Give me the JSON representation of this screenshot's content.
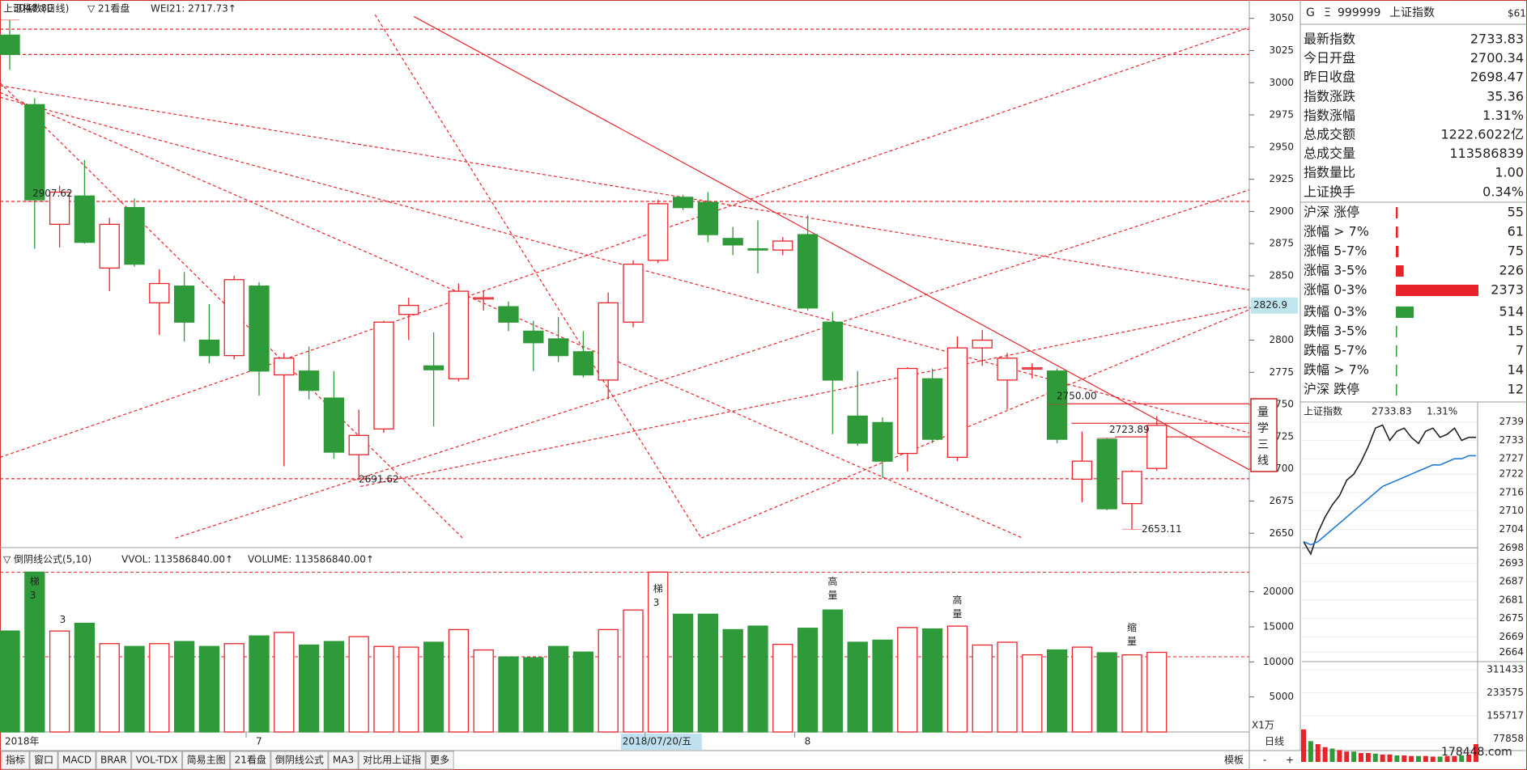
{
  "chart_data": [
    {
      "type": "candlestick",
      "title": "上证指数(日线)",
      "indicator": "▽ 21看盘",
      "indicator_value": "WEI21: 2717.73↑",
      "categories": [
        "2018年",
        null,
        null,
        null,
        null,
        null,
        null,
        null,
        null,
        null,
        "7",
        null,
        null,
        null,
        null,
        null,
        null,
        null,
        null,
        null,
        null,
        null,
        null,
        null,
        null,
        null,
        "2018/07/20/五",
        null,
        null,
        null,
        null,
        null,
        "8",
        null,
        null,
        null,
        null,
        null,
        null,
        null,
        null,
        null,
        null,
        null,
        null,
        null,
        null
      ],
      "open": [
        3037,
        2983,
        2890,
        2912,
        2856,
        2903,
        2829,
        2842,
        2800,
        2788,
        2842,
        2773,
        2776,
        2755,
        2711,
        2731,
        2820,
        2780,
        2770,
        2832,
        2826,
        2807,
        2801,
        2791,
        2769,
        2814,
        2862,
        2911,
        2907,
        2879,
        2871,
        2870,
        2882,
        2814,
        2741,
        2736,
        2712,
        2770,
        2709,
        2794,
        2769,
        2778,
        2776,
        2692,
        2723,
        2673,
        2700.34
      ],
      "high": [
        3048.8,
        2988,
        2920,
        2940,
        2895,
        2910,
        2855,
        2853,
        2828,
        2850,
        2845,
        2790,
        2795,
        2776,
        2746,
        2815,
        2833,
        2806,
        2844,
        2838,
        2830,
        2815,
        2818,
        2807,
        2837,
        2862,
        2909,
        2913,
        2915,
        2888,
        2893,
        2880,
        2897,
        2822,
        2776,
        2740,
        2779,
        2778,
        2803,
        2808,
        2790,
        2782,
        2778,
        2729,
        2724,
        2699,
        2741
      ],
      "low": [
        3010,
        2871,
        2872,
        2875,
        2838,
        2857,
        2804,
        2799,
        2782,
        2785,
        2757,
        2702,
        2754,
        2708,
        2691.62,
        2728,
        2800,
        2733,
        2768,
        2823,
        2807,
        2776,
        2783,
        2771,
        2754,
        2810,
        2860,
        2901,
        2876,
        2866,
        2852,
        2866,
        2823,
        2727,
        2718,
        2693,
        2698,
        2720,
        2706,
        2780,
        2746,
        2770,
        2720,
        2674,
        2668,
        2653.11,
        2698.47
      ],
      "close": [
        3022,
        2909,
        2915,
        2876,
        2890,
        2859,
        2844,
        2814,
        2788,
        2847,
        2776,
        2786,
        2761,
        2713,
        2726,
        2814,
        2827,
        2777,
        2838,
        2833,
        2814,
        2798,
        2788,
        2773,
        2829,
        2859,
        2906,
        2903,
        2882,
        2874,
        2870,
        2877,
        2825,
        2769,
        2720,
        2706,
        2778,
        2723,
        2794,
        2800,
        2786,
        2778.5,
        2723,
        2706,
        2669,
        2698,
        2733.83
      ],
      "up_color": "#e8242b",
      "down_color": "#2f9a3a",
      "ylim": [
        2642,
        3063
      ],
      "yticks": [
        2650,
        2675,
        2700,
        2725,
        2750,
        2775,
        2800,
        2825,
        2850,
        2875,
        2900,
        2925,
        2950,
        2975,
        3000,
        3025,
        3050
      ],
      "annotations": [
        {
          "value": 3048.8,
          "label": "3048.80"
        },
        2907.62,
        2691.62,
        {
          "value": 2750,
          "label": "2750.00"
        },
        2723.89,
        2653.11
      ],
      "cursor_price": 2826.9,
      "note": "量学三线"
    },
    {
      "type": "bar",
      "title": "▽ 倒阴线公式(5,10)",
      "label_vvol": "VVOL: 113586840.00↑",
      "label_volume": "VOLUME: 113586840.00↑",
      "unit": "X1万",
      "values": [
        14400,
        22800,
        14400,
        15500,
        12600,
        12200,
        12600,
        12900,
        12200,
        12600,
        13700,
        14200,
        12400,
        12900,
        13600,
        12200,
        12100,
        12800,
        14600,
        11700,
        10700,
        10600,
        12200,
        11400,
        14600,
        17400,
        22800,
        16800,
        16800,
        14600,
        15100,
        12500,
        14800,
        17400,
        12800,
        13100,
        14900,
        14700,
        15100,
        12400,
        12800,
        11000,
        11700,
        12100,
        11300,
        11000,
        11359
      ],
      "ylim": [
        0,
        24800
      ],
      "yticks": [
        5000,
        10000,
        15000,
        20000
      ],
      "notes": [
        "梯3",
        "3",
        "梯3",
        "高量",
        "高量",
        "缩量"
      ]
    },
    {
      "type": "line",
      "title": "上证指数",
      "price_label": "2733.83",
      "change_label": "1.31%",
      "series": [
        {
          "name": "price",
          "color": "#222222",
          "values": [
            2700,
            2696,
            2703,
            2708,
            2712,
            2715,
            2720,
            2722,
            2726,
            2731,
            2737,
            2738,
            2733,
            2736,
            2737,
            2734,
            2732,
            2736,
            2737,
            2734,
            2735,
            2737,
            2733,
            2734,
            2734
          ]
        },
        {
          "name": "avg",
          "color": "#1f7bd6",
          "values": [
            2700,
            2699,
            2700,
            2702,
            2704,
            2706,
            2708,
            2710,
            2712,
            2714,
            2716,
            2718,
            2719,
            2720,
            2721,
            2722,
            2723,
            2724,
            2725,
            2725,
            2726,
            2727,
            2727,
            2728,
            2728
          ]
        },
        {
          "name": "volume",
          "color": "#e8242b",
          "axis": "y2",
          "values": [
            110000,
            70000,
            60000,
            50000,
            45000,
            40000,
            35000,
            35000,
            30000,
            30000,
            28000,
            25000,
            25000,
            22000,
            22000,
            20000,
            20000,
            20000,
            18000,
            18000,
            20000,
            20000,
            22000,
            25000,
            60000
          ]
        }
      ],
      "ylim": [
        2662.5,
        2740.5
      ],
      "yticks": [
        2739,
        2733,
        2727,
        2722,
        2716,
        2710,
        2704,
        2698,
        2693,
        2687,
        2681,
        2675,
        2669,
        2664
      ],
      "y2lim": [
        0,
        311433
      ],
      "y2ticks": [
        311433,
        233575,
        155717,
        77858
      ]
    }
  ],
  "panel_header": {
    "g": "G",
    "menu": "Ξ",
    "code": "999999",
    "name": "上证指数",
    "tag": "$61"
  },
  "info": [
    {
      "label": "最新指数",
      "value": "2733.83",
      "color": "#e8242b"
    },
    {
      "label": "今日开盘",
      "value": "2700.34",
      "color": "#e8242b"
    },
    {
      "label": "昨日收盘",
      "value": "2698.47",
      "color": "#222222"
    },
    {
      "label": "指数涨跌",
      "value": "35.36",
      "color": "#e8242b"
    },
    {
      "label": "指数涨幅",
      "value": "1.31%",
      "color": "#e8242b"
    },
    {
      "label": "总成交额",
      "value": "1222.6022亿",
      "color": "#222222"
    },
    {
      "label": "总成交量",
      "value": "113586839",
      "color": "#222222"
    },
    {
      "label": "指数量比",
      "value": "1.00",
      "color": "#e8242b"
    },
    {
      "label": "上证换手",
      "value": "0.34%",
      "color": "#222222"
    }
  ],
  "breadth": [
    {
      "label": "沪深 涨停",
      "value": 55,
      "color": "#e8242b"
    },
    {
      "label": "涨幅 > 7%",
      "value": 61,
      "color": "#e8242b"
    },
    {
      "label": "涨幅 5-7%",
      "value": 75,
      "color": "#e8242b"
    },
    {
      "label": "涨幅 3-5%",
      "value": 226,
      "color": "#e8242b"
    },
    {
      "label": "涨幅 0-3%",
      "value": 2373,
      "color": "#e8242b"
    },
    {
      "label": "跌幅 0-3%",
      "value": 514,
      "color": "#2f9a3a"
    },
    {
      "label": "跌幅 3-5%",
      "value": 15,
      "color": "#2f9a3a"
    },
    {
      "label": "跌幅 5-7%",
      "value": 7,
      "color": "#2f9a3a"
    },
    {
      "label": "跌幅 > 7%",
      "value": 14,
      "color": "#2f9a3a"
    },
    {
      "label": "沪深 跌停",
      "value": 12,
      "color": "#2f9a3a"
    }
  ],
  "tabs": [
    "指标",
    "窗口",
    "MACD",
    "BRAR",
    "VOL-TDX",
    "简易主图",
    "21看盘",
    "倒阴线公式",
    "MA3",
    "对比用上证指",
    "更多"
  ],
  "active_tab": 7,
  "right_tabs": {
    "template": "模板",
    "period": "日线",
    "minus": "-",
    "plus": "+"
  },
  "watermark": "178448.com"
}
